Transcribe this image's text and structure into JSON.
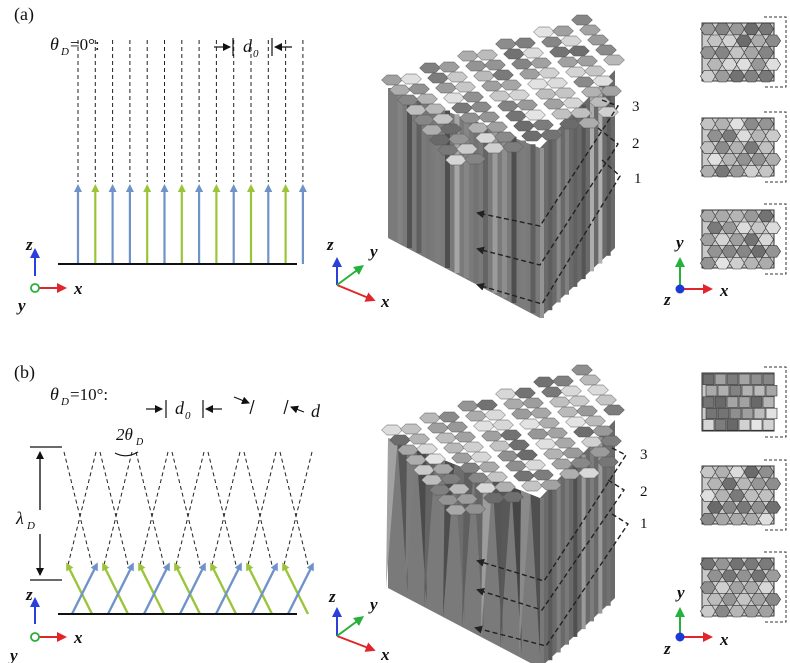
{
  "panels": [
    {
      "label": "(a)",
      "theta_label": "θ",
      "theta_sub": "D",
      "theta_value": "=0°:",
      "spacing_label": "d",
      "spacing_sub": "0",
      "layers": [
        "3",
        "2",
        "1"
      ],
      "axes_left": [
        "z",
        "y",
        "x"
      ],
      "axes_mid": [
        "z",
        "y",
        "x"
      ],
      "axes_right": [
        "y",
        "z",
        "x"
      ]
    },
    {
      "label": "(b)",
      "theta_label": "θ",
      "theta_sub": "D",
      "theta_value": "=10°:",
      "spacing_label": "d",
      "spacing_sub": "0",
      "spacing2_label": "d",
      "angle_label": "2θ",
      "angle_sub": "D",
      "period_label": "λ",
      "period_sub": "D",
      "layers": [
        "3",
        "2",
        "1"
      ],
      "axes_left": [
        "z",
        "y",
        "x"
      ],
      "axes_mid": [
        "z",
        "y",
        "x"
      ],
      "axes_right": [
        "y",
        "z",
        "x"
      ]
    }
  ],
  "colors": {
    "blue": "#6f93c8",
    "green": "#9bc43a",
    "axis_z": "#2a40d8",
    "axis_x": "#e0262b",
    "axis_y": "#27b03b",
    "origin_blue": "#1a3ad8"
  }
}
